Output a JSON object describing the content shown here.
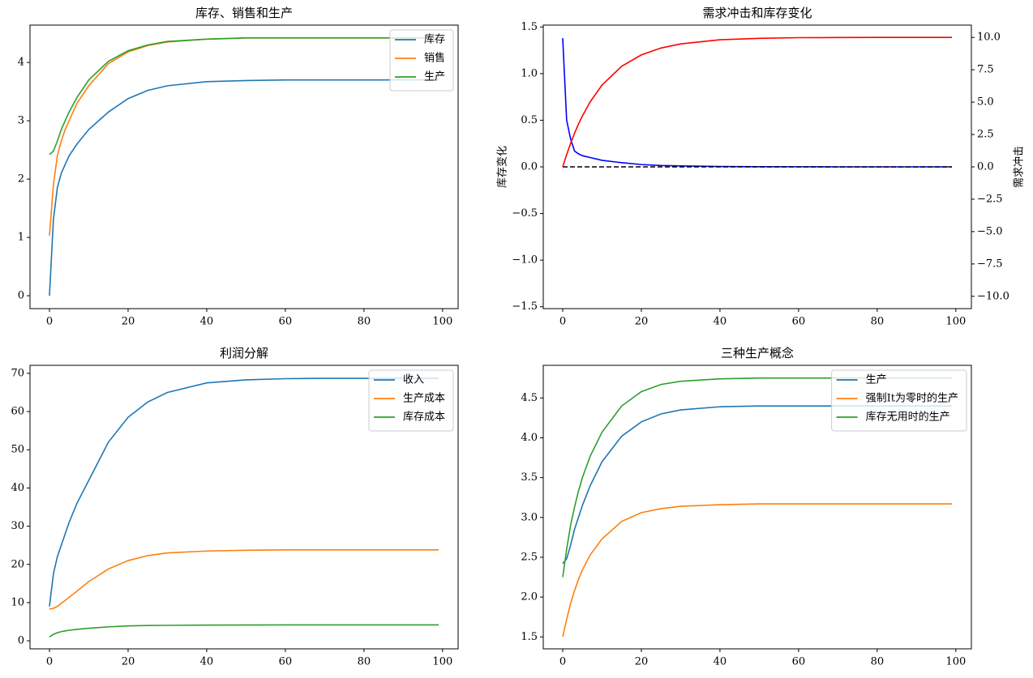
{
  "chart_data": [
    {
      "type": "line",
      "title": "库存、销售和生产",
      "x": [
        0,
        1,
        2,
        3,
        4,
        5,
        7,
        10,
        15,
        20,
        25,
        30,
        40,
        50,
        60,
        70,
        80,
        90,
        99
      ],
      "series": [
        {
          "name": "库存",
          "color": "#1f77b4",
          "values": [
            0,
            1.3,
            1.85,
            2.1,
            2.25,
            2.4,
            2.6,
            2.85,
            3.15,
            3.38,
            3.52,
            3.6,
            3.67,
            3.69,
            3.7,
            3.7,
            3.7,
            3.7,
            3.7
          ]
        },
        {
          "name": "销售",
          "color": "#ff7f0e",
          "values": [
            1.03,
            1.9,
            2.4,
            2.65,
            2.85,
            3.0,
            3.3,
            3.6,
            3.98,
            4.18,
            4.29,
            4.35,
            4.4,
            4.42,
            4.42,
            4.42,
            4.42,
            4.42,
            4.42
          ]
        },
        {
          "name": "生产",
          "color": "#2ca02c",
          "values": [
            2.42,
            2.48,
            2.65,
            2.85,
            3.0,
            3.15,
            3.4,
            3.7,
            4.02,
            4.2,
            4.3,
            4.36,
            4.4,
            4.42,
            4.42,
            4.42,
            4.42,
            4.42,
            4.42
          ]
        }
      ],
      "xlim": [
        -4.95,
        103.95
      ],
      "xticks": [
        0,
        20,
        40,
        60,
        80,
        100
      ],
      "ylim": [
        -0.221,
        4.64
      ],
      "yticks": [
        0,
        1,
        2,
        3,
        4
      ],
      "legend": "upper right"
    },
    {
      "type": "line",
      "title": "需求冲击和库存变化",
      "x": [
        0,
        1,
        2,
        3,
        4,
        5,
        7,
        10,
        15,
        20,
        25,
        30,
        40,
        50,
        60,
        70,
        80,
        90,
        99
      ],
      "series": [
        {
          "color": "#0000ff",
          "values": [
            1.38,
            0.5,
            0.3,
            0.17,
            0.14,
            0.12,
            0.1,
            0.07,
            0.045,
            0.025,
            0.015,
            0.01,
            0.004,
            0.002,
            0.001,
            0,
            0,
            0,
            0
          ]
        },
        {
          "color": "#000000",
          "linestyle": "dashed",
          "values": [
            0,
            0,
            0,
            0,
            0,
            0,
            0,
            0,
            0,
            0,
            0,
            0,
            0,
            0,
            0,
            0,
            0,
            0,
            0
          ]
        },
        {
          "color": "#ff0000",
          "axis": "y2",
          "values": [
            0,
            0.95,
            1.81,
            2.59,
            3.3,
            3.93,
            5.03,
            6.32,
            7.77,
            8.65,
            9.18,
            9.5,
            9.82,
            9.93,
            9.98,
            9.99,
            10,
            10,
            10
          ]
        }
      ],
      "xlim": [
        -4.95,
        103.95
      ],
      "xticks": [
        0,
        20,
        40,
        60,
        80,
        100
      ],
      "ylim": [
        -1.52,
        1.52
      ],
      "yticks": [
        {
          "value": -1.5,
          "label": "−1.5"
        },
        {
          "value": -1,
          "label": "−1.0"
        },
        {
          "value": -0.5,
          "label": "−0.5"
        },
        {
          "value": 0,
          "label": "0.0"
        },
        0.5,
        {
          "value": 1,
          "label": "1.0"
        },
        1.5
      ],
      "ylabel": "库存变化",
      "ylabel_color": "#0000ff",
      "y2lim": [
        -10.95,
        10.95
      ],
      "y2ticks": [
        {
          "value": -10,
          "label": "−10.0"
        },
        {
          "value": -7.5,
          "label": "−7.5"
        },
        {
          "value": -5,
          "label": "−5.0"
        },
        {
          "value": -2.5,
          "label": "−2.5"
        },
        {
          "value": 0,
          "label": "0.0"
        },
        2.5,
        {
          "value": 5,
          "label": "5.0"
        },
        7.5,
        {
          "value": 10,
          "label": "10.0"
        }
      ],
      "y2label": "需求冲击",
      "y2label_color": "#ff0000"
    },
    {
      "type": "line",
      "title": "利润分解",
      "x": [
        0,
        1,
        2,
        3,
        4,
        5,
        7,
        10,
        15,
        20,
        25,
        30,
        40,
        50,
        60,
        70,
        80,
        90,
        99
      ],
      "series": [
        {
          "name": "收入",
          "color": "#1f77b4",
          "values": [
            9,
            17.5,
            22,
            25,
            28,
            31,
            36,
            42,
            52,
            58.5,
            62.5,
            65,
            67.5,
            68.3,
            68.6,
            68.7,
            68.7,
            68.7,
            68.7
          ]
        },
        {
          "name": "生产成本",
          "color": "#ff7f0e",
          "values": [
            8.3,
            8.5,
            9,
            9.8,
            10.6,
            11.4,
            13,
            15.5,
            18.8,
            21,
            22.3,
            23,
            23.5,
            23.7,
            23.8,
            23.8,
            23.8,
            23.8,
            23.8
          ]
        },
        {
          "name": "库存成本",
          "color": "#2ca02c",
          "values": [
            1,
            1.7,
            2.1,
            2.4,
            2.6,
            2.75,
            3,
            3.3,
            3.65,
            3.9,
            4.0,
            4.05,
            4.12,
            4.15,
            4.16,
            4.16,
            4.16,
            4.16,
            4.16
          ]
        }
      ],
      "xlim": [
        -4.95,
        103.95
      ],
      "xticks": [
        0,
        20,
        40,
        60,
        80,
        100
      ],
      "ylim": [
        -2.1,
        72.1
      ],
      "yticks": [
        0,
        10,
        20,
        30,
        40,
        50,
        60,
        70
      ],
      "legend": "upper right"
    },
    {
      "type": "line",
      "title": "三种生产概念",
      "x": [
        0,
        1,
        2,
        3,
        4,
        5,
        7,
        10,
        15,
        20,
        25,
        30,
        40,
        50,
        60,
        70,
        80,
        90,
        99
      ],
      "series": [
        {
          "name": "生产",
          "color": "#1f77b4",
          "values": [
            2.42,
            2.48,
            2.65,
            2.85,
            3.0,
            3.15,
            3.4,
            3.7,
            4.02,
            4.2,
            4.3,
            4.35,
            4.39,
            4.4,
            4.4,
            4.4,
            4.4,
            4.4,
            4.4
          ]
        },
        {
          "name": "强制It为零时的生产",
          "color": "#ff7f0e",
          "values": [
            1.5,
            1.72,
            1.92,
            2.08,
            2.22,
            2.34,
            2.53,
            2.73,
            2.95,
            3.06,
            3.11,
            3.14,
            3.16,
            3.17,
            3.17,
            3.17,
            3.17,
            3.17,
            3.17
          ]
        },
        {
          "name": "库存无用时的生产",
          "color": "#2ca02c",
          "values": [
            2.25,
            2.6,
            2.9,
            3.13,
            3.33,
            3.5,
            3.77,
            4.07,
            4.4,
            4.58,
            4.67,
            4.71,
            4.74,
            4.75,
            4.75,
            4.75,
            4.75,
            4.75,
            4.75
          ]
        }
      ],
      "xlim": [
        -4.95,
        103.95
      ],
      "xticks": [
        0,
        20,
        40,
        60,
        80,
        100
      ],
      "ylim": [
        1.35,
        4.91
      ],
      "yticks": [
        1.5,
        {
          "value": 2,
          "label": "2.0"
        },
        2.5,
        {
          "value": 3,
          "label": "3.0"
        },
        3.5,
        {
          "value": 4,
          "label": "4.0"
        },
        4.5
      ],
      "legend": "upper right"
    }
  ]
}
